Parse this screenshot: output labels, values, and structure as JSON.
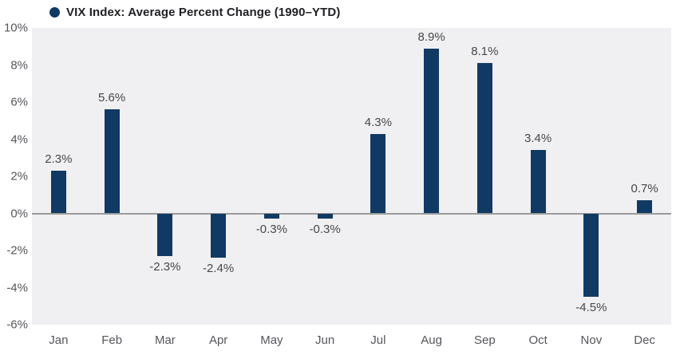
{
  "legend": {
    "label": "VIX Index: Average Percent Change (1990–YTD)"
  },
  "colors": {
    "bar": "#103a64",
    "plot_bg": "#f0eff1",
    "zero_line": "#9b9b9b",
    "tick_text": "#55565b",
    "value_text": "#47484c",
    "title_text": "#202124",
    "page_bg": "#ffffff"
  },
  "y_axis": {
    "ticks": [
      "10%",
      "8%",
      "6%",
      "4%",
      "2%",
      "0%",
      "-2%",
      "-4%",
      "-6%"
    ],
    "max": 10,
    "min": -6,
    "step": 2
  },
  "chart_data": {
    "type": "bar",
    "title": "VIX Index: Average Percent Change (1990–YTD)",
    "categories": [
      "Jan",
      "Feb",
      "Mar",
      "Apr",
      "May",
      "Jun",
      "Jul",
      "Aug",
      "Sep",
      "Oct",
      "Nov",
      "Dec"
    ],
    "values": [
      2.3,
      5.6,
      -2.3,
      -2.4,
      -0.3,
      -0.3,
      4.3,
      8.9,
      8.1,
      3.4,
      -4.5,
      0.7
    ],
    "labels": [
      "2.3%",
      "5.6%",
      "-2.3%",
      "-2.4%",
      "-0.3%",
      "-0.3%",
      "4.3%",
      "8.9%",
      "8.1%",
      "3.4%",
      "-4.5%",
      "0.7%"
    ],
    "xlabel": "",
    "ylabel": "",
    "ylim": [
      -6,
      10
    ],
    "grid": false,
    "legend_position": "top-left"
  }
}
